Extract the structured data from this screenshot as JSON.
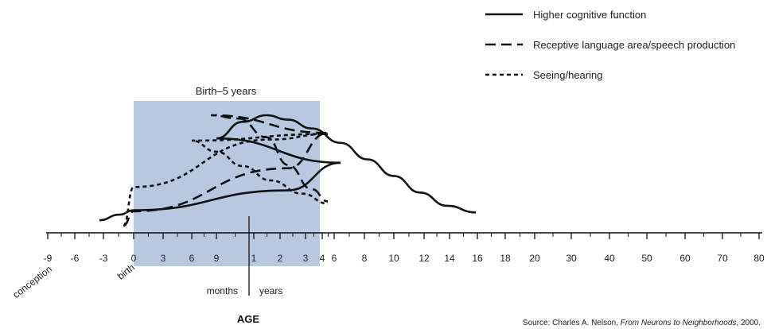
{
  "chart_data": {
    "type": "line",
    "title": "",
    "xlabel": "AGE",
    "ylabel": "",
    "x_ticks": [
      {
        "id": "m-9",
        "label": "-9"
      },
      {
        "id": "m-6",
        "label": "-6"
      },
      {
        "id": "m-3",
        "label": "-3"
      },
      {
        "id": "m0",
        "label": "0"
      },
      {
        "id": "m3",
        "label": "3"
      },
      {
        "id": "m6",
        "label": "6"
      },
      {
        "id": "m9",
        "label": "9"
      },
      {
        "id": "y1",
        "label": "1"
      },
      {
        "id": "y2",
        "label": "2"
      },
      {
        "id": "y3",
        "label": "3"
      },
      {
        "id": "y4",
        "label": "4"
      },
      {
        "id": "y6",
        "label": "6"
      },
      {
        "id": "y8",
        "label": "8"
      },
      {
        "id": "y10",
        "label": "10"
      },
      {
        "id": "y12",
        "label": "12"
      },
      {
        "id": "y14",
        "label": "14"
      },
      {
        "id": "y16",
        "label": "16"
      },
      {
        "id": "y18",
        "label": "18"
      },
      {
        "id": "y20",
        "label": "20"
      },
      {
        "id": "y30",
        "label": "30"
      },
      {
        "id": "y40",
        "label": "40"
      },
      {
        "id": "y50",
        "label": "50"
      },
      {
        "id": "y60",
        "label": "60"
      },
      {
        "id": "y70",
        "label": "70"
      },
      {
        "id": "y80",
        "label": "80"
      }
    ],
    "series": [
      {
        "name": "Higher cognitive function",
        "style": "solid",
        "x": [
          "-3",
          "-1",
          "0",
          "3",
          "6",
          "9",
          "1",
          "2",
          "3",
          "4",
          "6",
          "8",
          "10",
          "12",
          "14",
          "16"
        ],
        "y": [
          0.05,
          0.1,
          0.14,
          0.32,
          0.57,
          0.79,
          0.94,
          1.0,
          0.96,
          0.88,
          0.75,
          0.6,
          0.45,
          0.3,
          0.18,
          0.12
        ]
      },
      {
        "name": "Receptive language area/speech production",
        "style": "dashed",
        "x": [
          "-1",
          "0",
          "3",
          "6",
          "9",
          "1",
          "2",
          "3",
          "4",
          "6"
        ],
        "y": [
          0.0,
          0.13,
          0.52,
          0.84,
          1.0,
          0.97,
          0.8,
          0.55,
          0.33,
          0.22
        ]
      },
      {
        "name": "Seeing/hearing",
        "style": "dotted",
        "x": [
          "-1",
          "0",
          "3",
          "6",
          "9",
          "1",
          "2",
          "3",
          "4",
          "6"
        ],
        "y": [
          0.0,
          0.35,
          0.78,
          0.83,
          0.77,
          0.67,
          0.54,
          0.41,
          0.29,
          0.2
        ]
      }
    ],
    "legend": {
      "position": "top-right"
    },
    "shaded_region": {
      "label": "Birth–5 years",
      "color": "#b8c8e1",
      "from": "0",
      "to": "5"
    },
    "annotations": {
      "conception": "conception",
      "birth": "birth",
      "months": "months",
      "years": "years"
    },
    "source_parts": {
      "prefix": "Source: Charles A. Nelson, ",
      "title": "From Neurons to Neighborhoods",
      "suffix": ", 2000."
    },
    "grid": false
  }
}
